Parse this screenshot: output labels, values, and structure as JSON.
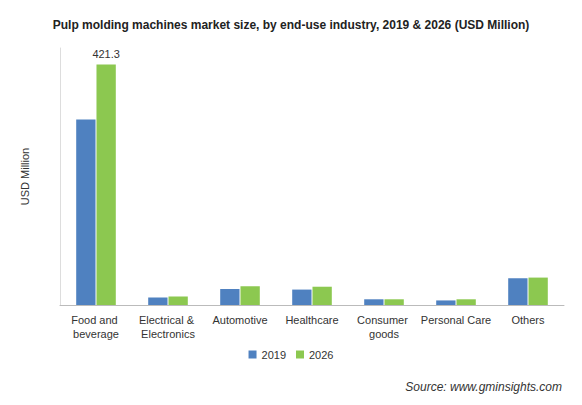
{
  "chart_data": {
    "type": "bar",
    "title": "Pulp molding machines market size, by end-use industry, 2019 & 2026 (USD Million)",
    "y_label": "USD Million",
    "source": "Source: www.gminsights.com",
    "categories": [
      "Food and beverage",
      "Electrical & Electronics",
      "Automotive",
      "Healthcare",
      "Consumer goods",
      "Personal Care",
      "Others"
    ],
    "series": [
      {
        "name": "2019",
        "color": "#4f81c0",
        "values": [
          325,
          13,
          28,
          27,
          10,
          8,
          47
        ]
      },
      {
        "name": "2026",
        "color": "#8cc850",
        "values": [
          421.3,
          15,
          33,
          32,
          10,
          10,
          48
        ]
      }
    ],
    "annotations": [
      {
        "text": "421.3",
        "category": "Food and beverage",
        "series": "2026"
      }
    ],
    "ylim": [
      0,
      450
    ],
    "yticks": [],
    "grid": false,
    "legend": "bottom",
    "tick_labels": "x"
  }
}
